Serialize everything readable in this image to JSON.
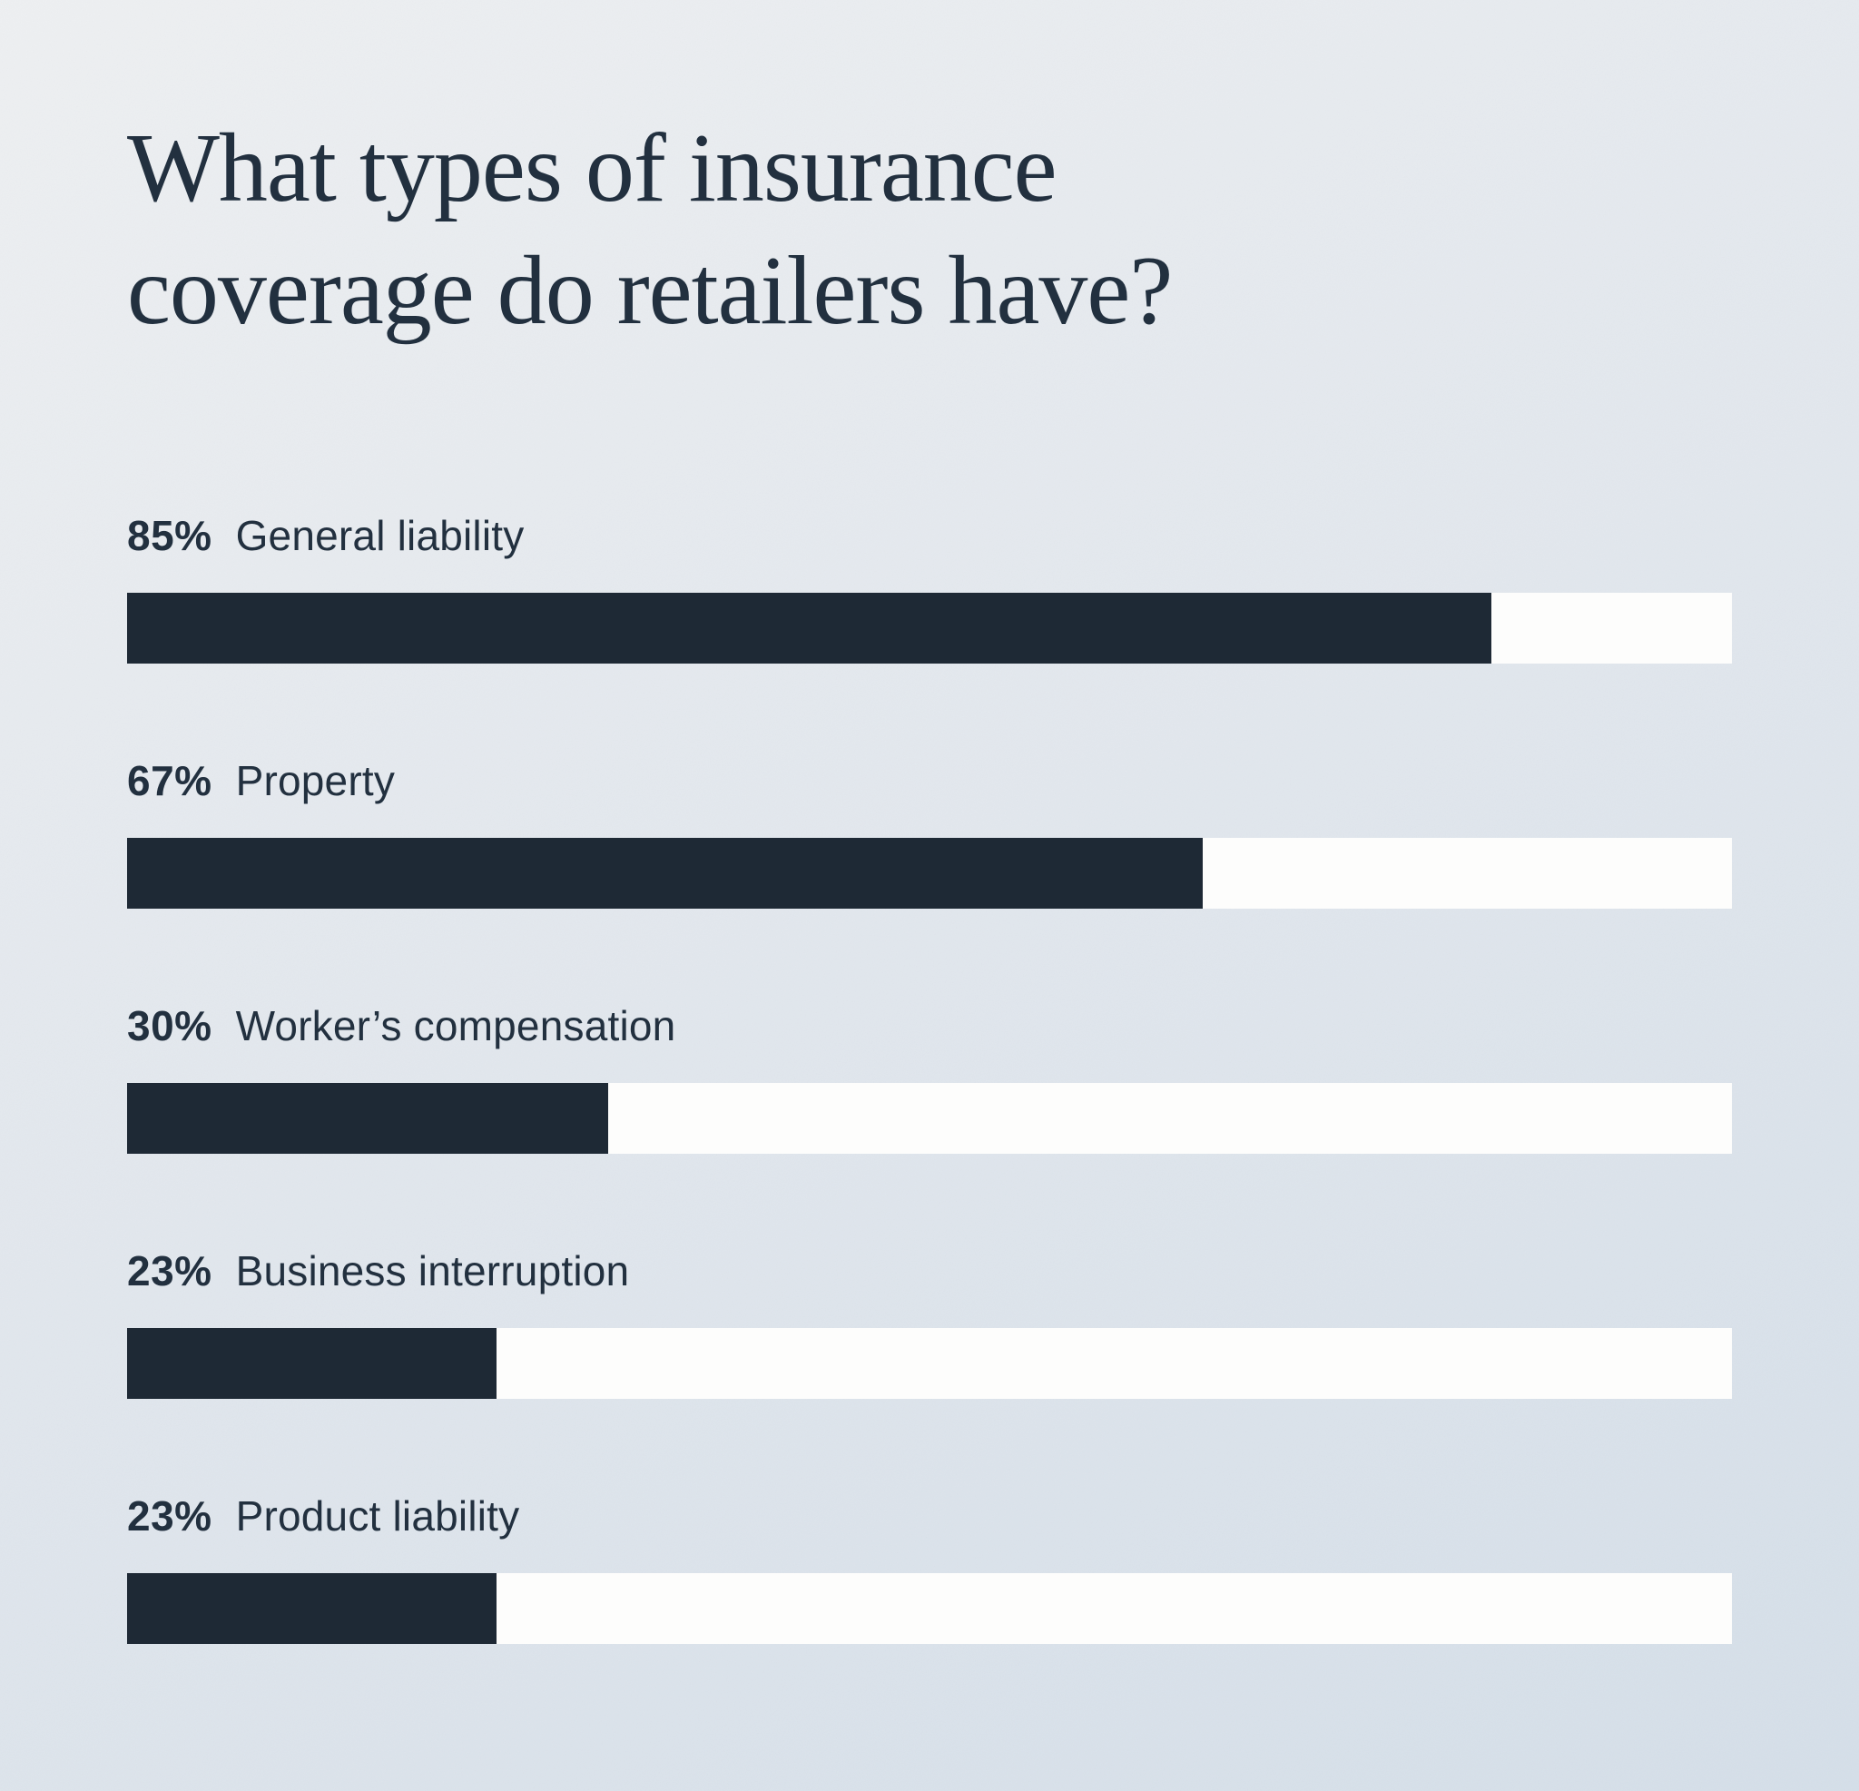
{
  "page": {
    "title": "What types of insurance coverage do retailers have?"
  },
  "chart_data": {
    "type": "bar",
    "orientation": "horizontal",
    "title": "What types of insurance coverage do retailers have?",
    "categories": [
      "General liability",
      "Property",
      "Worker’s compensation",
      "Business interruption",
      "Product liability"
    ],
    "values": [
      85,
      67,
      30,
      23,
      23
    ],
    "unit": "%",
    "value_labels": [
      "85%",
      "67%",
      "30%",
      "23%",
      "23%"
    ],
    "xlim": [
      0,
      100
    ],
    "grid": false,
    "legend": false,
    "colors": {
      "bar": "#1e2935",
      "track": "#fdfdfc",
      "text": "#22303f",
      "background_start": "#eef0f2",
      "background_end": "#d5dfe9"
    }
  }
}
